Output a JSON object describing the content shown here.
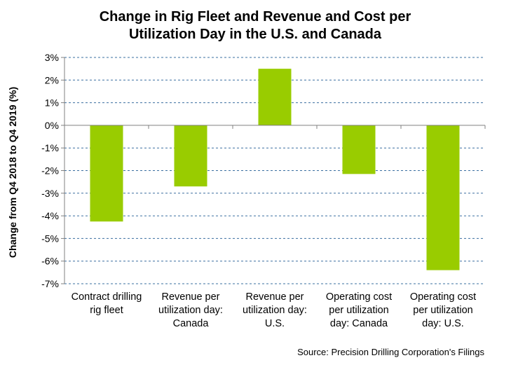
{
  "chart_data": {
    "type": "bar",
    "title_lines": [
      "Change in Rig Fleet and Revenue and Cost per",
      "Utilization  Day in the U.S. and Canada"
    ],
    "ylabel": "Change from Q4 2018 to Q4 2019 (%)",
    "xlabel": "",
    "categories": [
      [
        "Contract drilling",
        "rig fleet"
      ],
      [
        "Revenue per",
        "utilization day:",
        "Canada"
      ],
      [
        "Revenue per",
        "utilization day:",
        "U.S."
      ],
      [
        "Operating cost",
        "per utilization",
        "day: Canada"
      ],
      [
        "Operating cost",
        "per utilization",
        "day: U.S."
      ]
    ],
    "values": [
      -4.25,
      -2.7,
      2.5,
      -2.15,
      -6.4
    ],
    "ylim": [
      -7,
      3
    ],
    "yticks": [
      3,
      2,
      1,
      0,
      -1,
      -2,
      -3,
      -4,
      -5,
      -6,
      -7
    ],
    "ytick_labels": [
      "3%",
      "2%",
      "1%",
      "0%",
      "-1%",
      "-2%",
      "-3%",
      "-4%",
      "-5%",
      "-6%",
      "-7%"
    ],
    "grid": true,
    "legend": "none",
    "bar_color": "#99cc00",
    "gridline_color": "#3a6fa0",
    "source": "Source: Precision Drilling Corporation's  Filings"
  }
}
